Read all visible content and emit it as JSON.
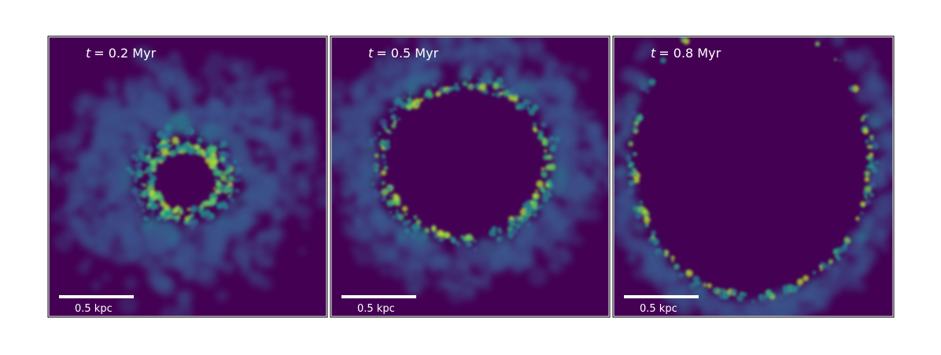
{
  "panels": [
    {
      "label_var": "t",
      "label_rest": "= 0.2 Myr",
      "scale_label": "0.5 kpc"
    },
    {
      "label_var": "t",
      "label_rest": "= 0.5 Myr",
      "scale_label": "0.5 kpc"
    },
    {
      "label_var": "t",
      "label_rest": "= 0.8 Myr",
      "scale_label": "0.5 kpc"
    }
  ]
}
